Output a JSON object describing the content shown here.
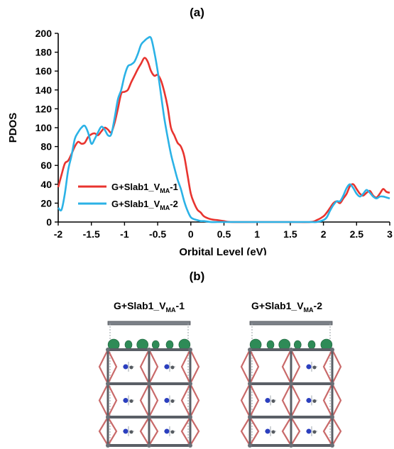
{
  "panel_a_label": "(a)",
  "panel_b_label": "(b)",
  "colors": {
    "series1": "#e8342f",
    "series2": "#2bb2e6",
    "bond": "#c96a6a",
    "frame": "#5a5f66",
    "orbital": "#2e8b57",
    "nitrogen": "#2b3fbf"
  },
  "chart_data": {
    "type": "line",
    "title": "",
    "xlabel": "Orbital Level (eV)",
    "ylabel": "PDOS",
    "xlim": [
      -2,
      3
    ],
    "ylim": [
      0,
      200
    ],
    "xticks": [
      "-2",
      "-1.5",
      "-1",
      "-0.5",
      "0",
      "0.5",
      "1",
      "1.5",
      "2",
      "2.5",
      "3"
    ],
    "yticks": [
      "0",
      "20",
      "40",
      "60",
      "80",
      "100",
      "120",
      "140",
      "160",
      "180",
      "200"
    ],
    "grid": false,
    "legend_position": "lower-left",
    "series": [
      {
        "name": "G+Slab1_V_MA-1",
        "legend_main": "G+Slab1_V",
        "legend_sub": "MA",
        "legend_suffix": "-1",
        "color": "#e8342f",
        "x": [
          -2.0,
          -1.95,
          -1.9,
          -1.85,
          -1.8,
          -1.75,
          -1.7,
          -1.65,
          -1.6,
          -1.55,
          -1.5,
          -1.45,
          -1.4,
          -1.35,
          -1.3,
          -1.25,
          -1.2,
          -1.15,
          -1.1,
          -1.05,
          -1.0,
          -0.95,
          -0.9,
          -0.85,
          -0.8,
          -0.75,
          -0.7,
          -0.65,
          -0.6,
          -0.55,
          -0.5,
          -0.45,
          -0.4,
          -0.35,
          -0.3,
          -0.25,
          -0.2,
          -0.15,
          -0.1,
          -0.05,
          0.0,
          0.05,
          0.1,
          0.15,
          0.2,
          0.3,
          0.4,
          0.5,
          0.6,
          1.0,
          1.5,
          1.8,
          1.9,
          2.0,
          2.05,
          2.1,
          2.15,
          2.2,
          2.25,
          2.3,
          2.35,
          2.4,
          2.45,
          2.5,
          2.55,
          2.6,
          2.65,
          2.7,
          2.75,
          2.8,
          2.85,
          2.9,
          2.95,
          3.0
        ],
        "y": [
          37,
          50,
          62,
          65,
          72,
          80,
          85,
          83,
          84,
          90,
          93,
          94,
          92,
          96,
          100,
          98,
          95,
          105,
          120,
          136,
          138,
          140,
          148,
          155,
          162,
          168,
          174,
          170,
          160,
          155,
          156,
          150,
          138,
          122,
          100,
          92,
          84,
          80,
          70,
          50,
          30,
          20,
          13,
          10,
          6,
          3,
          2,
          1,
          0,
          0,
          0,
          0,
          2,
          6,
          10,
          15,
          20,
          22,
          20,
          25,
          30,
          38,
          40,
          35,
          30,
          28,
          31,
          33,
          28,
          26,
          30,
          35,
          32,
          31
        ]
      },
      {
        "name": "G+Slab1_V_MA-2",
        "legend_main": "G+Slab1_V",
        "legend_sub": "MA",
        "legend_suffix": "-2",
        "color": "#2bb2e6",
        "x": [
          -2.0,
          -1.95,
          -1.9,
          -1.85,
          -1.8,
          -1.75,
          -1.7,
          -1.65,
          -1.6,
          -1.55,
          -1.5,
          -1.45,
          -1.4,
          -1.35,
          -1.3,
          -1.25,
          -1.2,
          -1.15,
          -1.1,
          -1.05,
          -1.0,
          -0.95,
          -0.9,
          -0.85,
          -0.8,
          -0.75,
          -0.7,
          -0.65,
          -0.6,
          -0.55,
          -0.5,
          -0.45,
          -0.4,
          -0.35,
          -0.3,
          -0.25,
          -0.2,
          -0.15,
          -0.1,
          -0.05,
          0.0,
          0.05,
          0.1,
          0.15,
          0.2,
          0.3,
          0.4,
          0.5,
          0.6,
          1.0,
          1.5,
          1.8,
          1.9,
          2.0,
          2.05,
          2.1,
          2.15,
          2.2,
          2.25,
          2.3,
          2.35,
          2.4,
          2.45,
          2.5,
          2.55,
          2.6,
          2.65,
          2.7,
          2.75,
          2.8,
          2.85,
          2.9,
          2.95,
          3.0
        ],
        "y": [
          15,
          13,
          30,
          55,
          70,
          88,
          95,
          100,
          102,
          95,
          83,
          88,
          95,
          101,
          98,
          92,
          93,
          110,
          130,
          140,
          155,
          165,
          167,
          170,
          178,
          188,
          192,
          195,
          195,
          180,
          160,
          135,
          110,
          90,
          72,
          58,
          45,
          35,
          22,
          12,
          5,
          3,
          2,
          1,
          1,
          0,
          0,
          0,
          0,
          0,
          0,
          0,
          0,
          2,
          5,
          12,
          18,
          22,
          22,
          28,
          36,
          40,
          36,
          30,
          27,
          30,
          34,
          31,
          27,
          25,
          27,
          27,
          26,
          25
        ]
      }
    ]
  },
  "structures": [
    {
      "title_main": "G+Slab1_V",
      "title_sub": "MA",
      "title_suffix": "-1"
    },
    {
      "title_main": "G+Slab1_V",
      "title_sub": "MA",
      "title_suffix": "-2"
    }
  ]
}
